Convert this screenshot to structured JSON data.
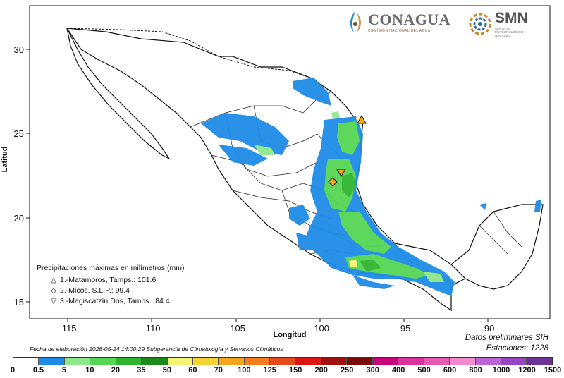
{
  "map": {
    "ylabel": "Latitud",
    "xlabel": "Longitud",
    "lon_ticks": [
      "-115",
      "-110",
      "-105",
      "-100",
      "-95",
      "-90"
    ],
    "lat_ticks": [
      "30",
      "25",
      "20",
      "15"
    ],
    "lon_range": [
      -117.5,
      -86.5
    ],
    "lat_range": [
      14.5,
      32.5
    ]
  },
  "legend": {
    "title": "Precipitaciones máximas en milímetros (mm)",
    "items": [
      {
        "symbol": "triangle-up",
        "text": "1.-Matamoros, Tamps.: 101.6",
        "lon": -97.5,
        "lat": 25.8
      },
      {
        "symbol": "diamond",
        "text": "2.-Micos, S.L.P.: 99.4",
        "lon": -99.1,
        "lat": 22.1
      },
      {
        "symbol": "triangle-down",
        "text": "3.-Magiscatzín Dos, Tamps.: 84.4",
        "lon": -98.7,
        "lat": 22.8
      }
    ]
  },
  "logos": {
    "conagua": "CONAGUA",
    "conagua_sub": "COMISIÓN NACIONAL DEL AGUA",
    "smn": "SMN",
    "smn_sub": [
      "SERVICIO",
      "METEOROLÓGICO",
      "NACIONAL"
    ]
  },
  "footer": {
    "left": "Fecha de elaboración 2026-05-24 14:00:29 Subgerencia de Climatología y Servicios Climáticos",
    "right_line1": "Datos preliminares SIH",
    "right_line2": "Estaciones:  1228"
  },
  "colorbar": {
    "labels": [
      "0",
      "0.5",
      "5",
      "10",
      "20",
      "35",
      "50",
      "60",
      "70",
      "100",
      "125",
      "150",
      "200",
      "250",
      "300",
      "400",
      "500",
      "600",
      "800",
      "1000",
      "1200",
      "1500"
    ],
    "colors": [
      "#ffffff",
      "#1e8ce6",
      "#8ee88a",
      "#55d655",
      "#2fb52f",
      "#1e8a1e",
      "#f5f57a",
      "#f5d235",
      "#f5a51e",
      "#f57d1e",
      "#e64b1e",
      "#dc1414",
      "#a01010",
      "#780a0a",
      "#c8007d",
      "#dc32a0",
      "#e65ab4",
      "#f08ccd",
      "#be64d2",
      "#9646be",
      "#6e3296"
    ]
  }
}
